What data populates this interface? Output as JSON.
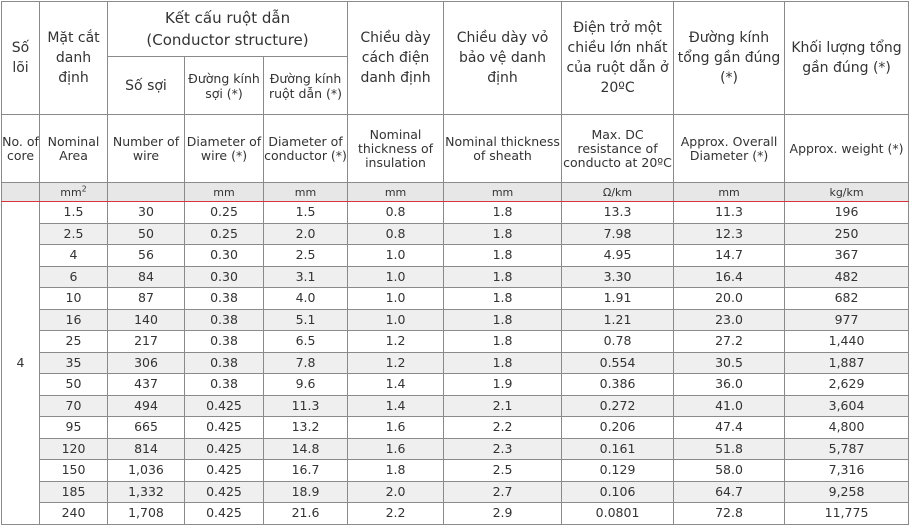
{
  "header": {
    "so_loi": "Số lõi",
    "mat_cat": "Mặt cắt danh định",
    "ket_cau_vn": "Kết cấu ruột dẫn",
    "ket_cau_en": "(Conductor structure)",
    "so_soi": "Số sợi",
    "dk_soi": "Đường kính sợi (*)",
    "dk_ruot": "Đường kính ruột dẫn (*)",
    "day_cd": "Chiều dày cách điện danh định",
    "day_vbv": "Chiều dày vỏ bảo vệ danh định",
    "dien_tro": "Điện trở một chiều lớn nhất của ruột dẫn ở 20ºC",
    "dk_tong": "Đường kính tổng gần đúng (*)",
    "khoi_luong": "Khối lượng tổng gần đúng (*)"
  },
  "header_en": {
    "no_core": "No. of core",
    "nominal_area": "Nominal Area",
    "number_wire": "Number of wire",
    "dia_wire": "Diameter of wire (*)",
    "dia_cond": "Diameter of conductor (*)",
    "thick_ins": "Nominal thickness of insulation",
    "thick_sheath": "Nominal thickness of sheath",
    "max_dc": "Max. DC resistance of conducto at 20ºC",
    "overall_dia": "Approx. Overall Diameter (*)",
    "weight": "Approx. weight (*)"
  },
  "units": {
    "area": "mm",
    "area_sup": "2",
    "wire": "",
    "dia_wire": "mm",
    "dia_cond": "mm",
    "ins": "mm",
    "sheath": "mm",
    "res": "Ω/km",
    "overall": "mm",
    "weight": "kg/km"
  },
  "core_count": "4",
  "rows": [
    {
      "area": "1.5",
      "wires": "30",
      "dw": "0.25",
      "dc": "1.5",
      "ins": "0.8",
      "sh": "1.8",
      "res": "13.3",
      "od": "11.3",
      "wt": "196"
    },
    {
      "area": "2.5",
      "wires": "50",
      "dw": "0.25",
      "dc": "2.0",
      "ins": "0.8",
      "sh": "1.8",
      "res": "7.98",
      "od": "12.3",
      "wt": "250"
    },
    {
      "area": "4",
      "wires": "56",
      "dw": "0.30",
      "dc": "2.5",
      "ins": "1.0",
      "sh": "1.8",
      "res": "4.95",
      "od": "14.7",
      "wt": "367"
    },
    {
      "area": "6",
      "wires": "84",
      "dw": "0.30",
      "dc": "3.1",
      "ins": "1.0",
      "sh": "1.8",
      "res": "3.30",
      "od": "16.4",
      "wt": "482"
    },
    {
      "area": "10",
      "wires": "87",
      "dw": "0.38",
      "dc": "4.0",
      "ins": "1.0",
      "sh": "1.8",
      "res": "1.91",
      "od": "20.0",
      "wt": "682"
    },
    {
      "area": "16",
      "wires": "140",
      "dw": "0.38",
      "dc": "5.1",
      "ins": "1.0",
      "sh": "1.8",
      "res": "1.21",
      "od": "23.0",
      "wt": "977"
    },
    {
      "area": "25",
      "wires": "217",
      "dw": "0.38",
      "dc": "6.5",
      "ins": "1.2",
      "sh": "1.8",
      "res": "0.78",
      "od": "27.2",
      "wt": "1,440"
    },
    {
      "area": "35",
      "wires": "306",
      "dw": "0.38",
      "dc": "7.8",
      "ins": "1.2",
      "sh": "1.8",
      "res": "0.554",
      "od": "30.5",
      "wt": "1,887"
    },
    {
      "area": "50",
      "wires": "437",
      "dw": "0.38",
      "dc": "9.6",
      "ins": "1.4",
      "sh": "1.9",
      "res": "0.386",
      "od": "36.0",
      "wt": "2,629"
    },
    {
      "area": "70",
      "wires": "494",
      "dw": "0.425",
      "dc": "11.3",
      "ins": "1.4",
      "sh": "2.1",
      "res": "0.272",
      "od": "41.0",
      "wt": "3,604"
    },
    {
      "area": "95",
      "wires": "665",
      "dw": "0.425",
      "dc": "13.2",
      "ins": "1.6",
      "sh": "2.2",
      "res": "0.206",
      "od": "47.4",
      "wt": "4,800"
    },
    {
      "area": "120",
      "wires": "814",
      "dw": "0.425",
      "dc": "14.8",
      "ins": "1.6",
      "sh": "2.3",
      "res": "0.161",
      "od": "51.8",
      "wt": "5,787"
    },
    {
      "area": "150",
      "wires": "1,036",
      "dw": "0.425",
      "dc": "16.7",
      "ins": "1.8",
      "sh": "2.5",
      "res": "0.129",
      "od": "58.0",
      "wt": "7,316"
    },
    {
      "area": "185",
      "wires": "1,332",
      "dw": "0.425",
      "dc": "18.9",
      "ins": "2.0",
      "sh": "2.7",
      "res": "0.106",
      "od": "64.7",
      "wt": "9,258"
    },
    {
      "area": "240",
      "wires": "1,708",
      "dw": "0.425",
      "dc": "21.6",
      "ins": "2.2",
      "sh": "2.9",
      "res": "0.0801",
      "od": "72.8",
      "wt": "11,775"
    }
  ]
}
